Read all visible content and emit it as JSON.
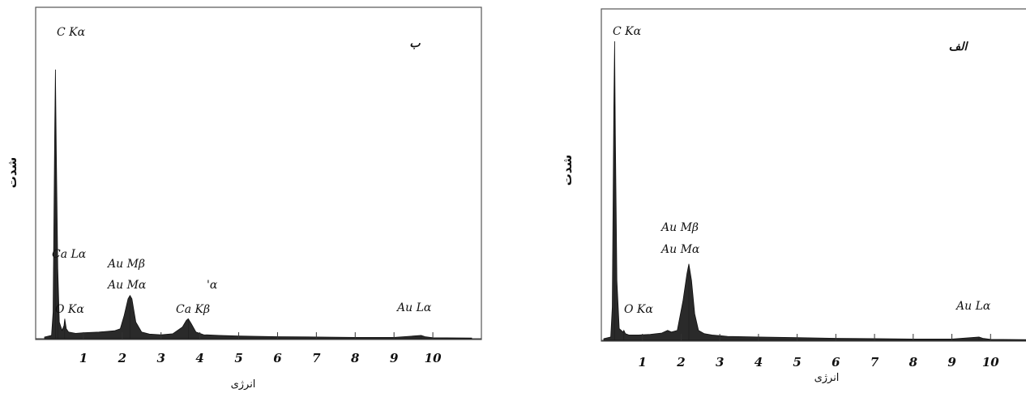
{
  "chart_data": [
    {
      "type": "area",
      "panel_label": "ب",
      "title": "",
      "xlabel": "انرژی",
      "ylabel": "شدت",
      "xlim": [
        0,
        11
      ],
      "ylim": [
        0,
        100
      ],
      "xticks": [
        "1",
        "2",
        "3",
        "4",
        "5",
        "6",
        "7",
        "8",
        "9",
        "10"
      ],
      "peaks": [
        {
          "label": "C Kα",
          "energy": 0.28,
          "intensity": 81
        },
        {
          "label": "O Kα",
          "energy": 0.52,
          "intensity": 6
        },
        {
          "label": "Ca Lα",
          "energy": 0.34,
          "intensity": 21
        },
        {
          "label": "Au Mβ\nAu Mα",
          "energy": 2.2,
          "intensity": 13
        },
        {
          "label": "Ca Kβ",
          "energy": 3.7,
          "intensity": 6
        },
        {
          "label": "Au Lα",
          "energy": 9.7,
          "intensity": 1
        }
      ],
      "annotations": [
        "C Kα",
        "Ca Lα",
        "Au Mβ",
        "Au Mα",
        "'α",
        "O Kα",
        "Ca Kβ",
        "Au Lα"
      ],
      "spectrum": {
        "x": [
          0.0,
          0.18,
          0.22,
          0.26,
          0.28,
          0.3,
          0.34,
          0.38,
          0.45,
          0.5,
          0.52,
          0.56,
          0.62,
          0.8,
          1.0,
          1.4,
          1.8,
          1.95,
          2.05,
          2.15,
          2.2,
          2.25,
          2.35,
          2.5,
          2.7,
          3.0,
          3.3,
          3.55,
          3.65,
          3.7,
          3.78,
          3.9,
          4.1,
          4.5,
          5.0,
          6.0,
          7.0,
          8.0,
          9.0,
          9.6,
          9.7,
          9.8,
          10.0,
          11.0
        ],
        "y": [
          0.5,
          1,
          8,
          62,
          81,
          58,
          21,
          5,
          2.5,
          4,
          6,
          3,
          2,
          1.6,
          1.8,
          2,
          2.4,
          3,
          7,
          12,
          13,
          12,
          5,
          2,
          1.4,
          1.2,
          1.5,
          3.5,
          5.5,
          6,
          4.5,
          2,
          1.2,
          1,
          0.8,
          0.6,
          0.5,
          0.4,
          0.4,
          0.9,
          1,
          0.6,
          0.3,
          0.2
        ]
      }
    },
    {
      "type": "area",
      "panel_label": "الف",
      "title": "",
      "xlabel": "انرژی",
      "ylabel": "شدت",
      "xlim": [
        0,
        11
      ],
      "ylim": [
        0,
        100
      ],
      "xticks": [
        "1",
        "2",
        "3",
        "4",
        "5",
        "6",
        "7",
        "8",
        "9",
        "10"
      ],
      "peaks": [
        {
          "label": "C Kα",
          "energy": 0.28,
          "intensity": 90
        },
        {
          "label": "O Kα",
          "energy": 0.52,
          "intensity": 3
        },
        {
          "label": "Au Mβ\nAu Mα",
          "energy": 2.2,
          "intensity": 23
        },
        {
          "label": "Au Lα",
          "energy": 9.7,
          "intensity": 1
        }
      ],
      "annotations": [
        "C Kα",
        "Au Mβ",
        "Au Mα",
        "O Kα",
        "Au Lα"
      ],
      "spectrum": {
        "x": [
          0.0,
          0.18,
          0.22,
          0.26,
          0.28,
          0.3,
          0.34,
          0.4,
          0.5,
          0.52,
          0.56,
          0.65,
          0.9,
          1.2,
          1.5,
          1.65,
          1.75,
          1.9,
          2.05,
          2.15,
          2.2,
          2.27,
          2.35,
          2.45,
          2.6,
          2.8,
          3.2,
          4.0,
          5.0,
          6.0,
          7.0,
          8.0,
          9.0,
          9.6,
          9.7,
          9.8,
          10.0,
          11.0
        ],
        "y": [
          0.5,
          1,
          10,
          70,
          90,
          62,
          18,
          3.5,
          2.5,
          3,
          2,
          1.6,
          1.6,
          1.8,
          2.2,
          3,
          2.5,
          3,
          12,
          20,
          23,
          18,
          8,
          3,
          2,
          1.6,
          1.2,
          1,
          0.8,
          0.6,
          0.5,
          0.4,
          0.4,
          0.9,
          1,
          0.6,
          0.3,
          0.2
        ]
      }
    }
  ]
}
